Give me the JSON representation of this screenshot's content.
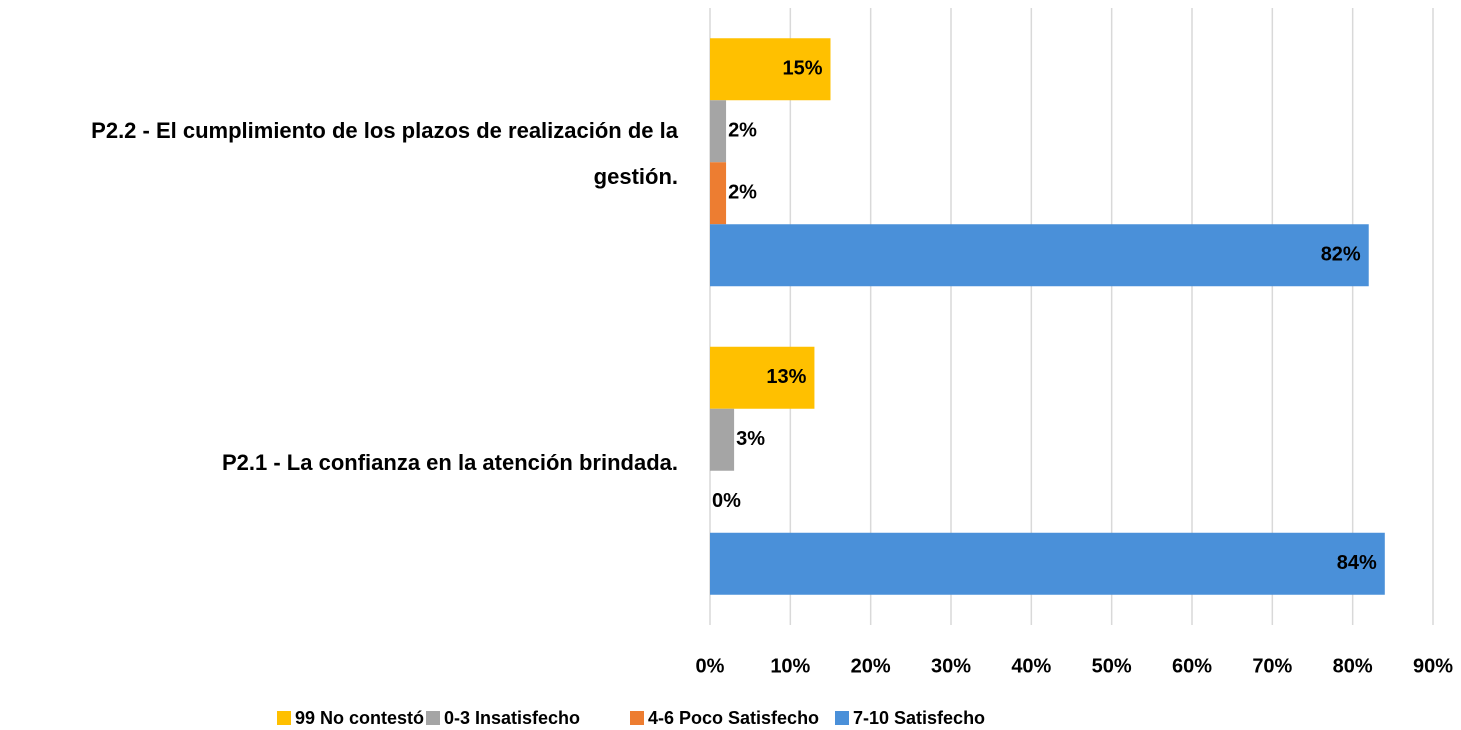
{
  "chart_data": {
    "type": "bar",
    "orientation": "horizontal",
    "categories": [
      "P2.1 - La confianza en la atención brindada.",
      "P2.2 - El cumplimiento de los plazos de realización de la gestión."
    ],
    "series": [
      {
        "name": "99 No contestó",
        "color": "#ffc000",
        "values": [
          13,
          15
        ],
        "value_labels": [
          "13%",
          "15%"
        ]
      },
      {
        "name": "0-3 Insatisfecho",
        "color": "#a5a5a5",
        "values": [
          3,
          2
        ],
        "value_labels": [
          "3%",
          "2%"
        ]
      },
      {
        "name": "4-6 Poco Satisfecho",
        "color": "#ed7d31",
        "values": [
          0,
          2
        ],
        "value_labels": [
          "0%",
          "2%"
        ]
      },
      {
        "name": "7-10 Satisfecho",
        "color": "#4a90d9",
        "values": [
          84,
          82
        ],
        "value_labels": [
          "84%",
          "82%"
        ]
      }
    ],
    "xlim": [
      0,
      90
    ],
    "xticks": [
      {
        "value": 0,
        "label": "0%"
      },
      {
        "value": 10,
        "label": "10%"
      },
      {
        "value": 20,
        "label": "20%"
      },
      {
        "value": 30,
        "label": "30%"
      },
      {
        "value": 40,
        "label": "40%"
      },
      {
        "value": 50,
        "label": "50%"
      },
      {
        "value": 60,
        "label": "60%"
      },
      {
        "value": 70,
        "label": "70%"
      },
      {
        "value": 80,
        "label": "80%"
      },
      {
        "value": 90,
        "label": "90%"
      }
    ],
    "grid": true,
    "legend": "bottom"
  }
}
